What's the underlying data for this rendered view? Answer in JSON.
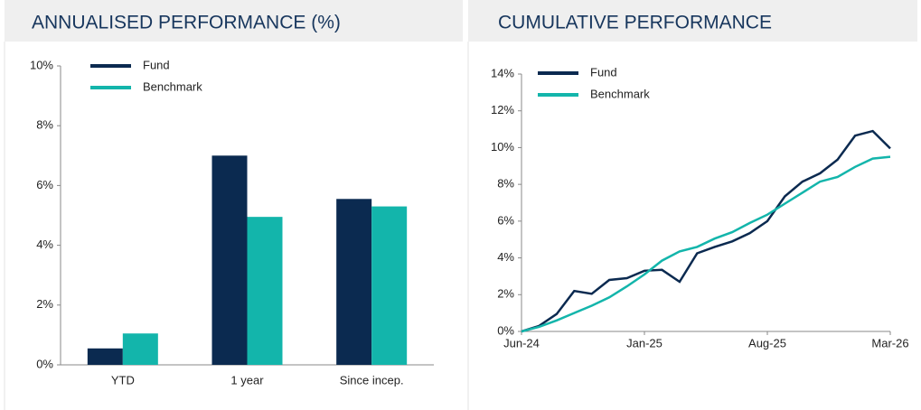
{
  "chart_data": [
    {
      "type": "bar",
      "title": "ANNUALISED PERFORMANCE (%)",
      "categories": [
        "YTD",
        "1 year",
        "Since incep."
      ],
      "series": [
        {
          "name": "Fund",
          "color": "#0b2a50",
          "values": [
            0.55,
            7.0,
            5.55
          ]
        },
        {
          "name": "Benchmark",
          "color": "#13b5ab",
          "values": [
            1.05,
            4.95,
            5.3
          ]
        }
      ],
      "ylim": [
        0,
        10
      ],
      "yticks": [
        {
          "value": 0,
          "label": "0%"
        },
        {
          "value": 2,
          "label": "2%"
        },
        {
          "value": 4,
          "label": "4%"
        },
        {
          "value": 6,
          "label": "6%"
        },
        {
          "value": 8,
          "label": "8%"
        },
        {
          "value": 10,
          "label": "10%"
        }
      ],
      "legend": "top-left"
    },
    {
      "type": "line",
      "title": "CUMULATIVE PERFORMANCE",
      "categories": [
        "Jun-24",
        null,
        null,
        null,
        null,
        null,
        null,
        "Jan-25",
        null,
        null,
        null,
        null,
        null,
        null,
        "Aug-25",
        null,
        null,
        null,
        null,
        null,
        null,
        "Mar-26"
      ],
      "series": [
        {
          "name": "Fund",
          "color": "#0b2a50",
          "values": [
            0,
            0.3,
            0.95,
            2.2,
            2.05,
            2.8,
            2.9,
            3.3,
            3.35,
            2.7,
            4.25,
            4.6,
            4.9,
            5.35,
            6.0,
            7.35,
            8.15,
            8.6,
            9.35,
            10.65,
            10.9,
            9.95
          ]
        },
        {
          "name": "Benchmark",
          "color": "#13b5ab",
          "values": [
            0,
            0.25,
            0.6,
            1.0,
            1.4,
            1.85,
            2.45,
            3.1,
            3.85,
            4.35,
            4.6,
            5.05,
            5.4,
            5.9,
            6.35,
            6.95,
            7.55,
            8.15,
            8.4,
            8.95,
            9.4,
            9.5
          ]
        }
      ],
      "ylim": [
        0,
        14
      ],
      "yticks": [
        {
          "value": 0,
          "label": "0%"
        },
        {
          "value": 2,
          "label": "2%"
        },
        {
          "value": 4,
          "label": "4%"
        },
        {
          "value": 6,
          "label": "6%"
        },
        {
          "value": 8,
          "label": "8%"
        },
        {
          "value": 10,
          "label": "10%"
        },
        {
          "value": 12,
          "label": "12%"
        },
        {
          "value": 14,
          "label": "14%"
        }
      ],
      "legend": "top-left"
    }
  ]
}
